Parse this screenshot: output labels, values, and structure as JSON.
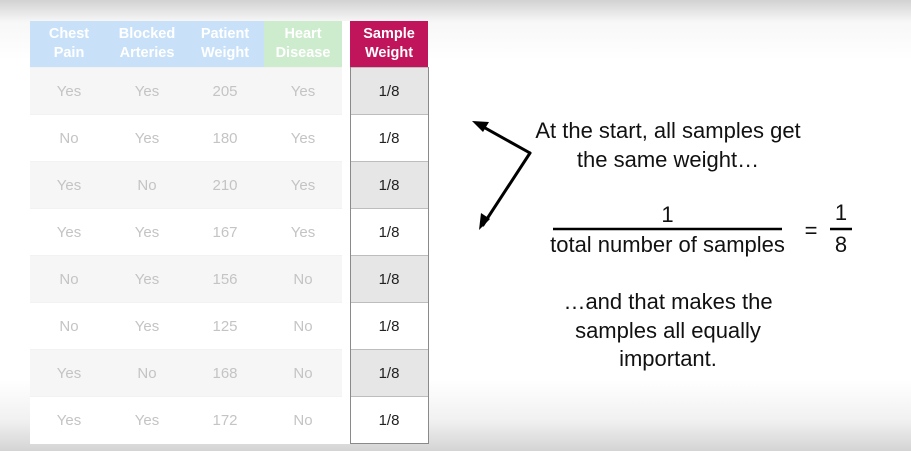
{
  "table": {
    "headers": [
      {
        "label": "Chest Pain",
        "lines": [
          "Chest",
          "Pain"
        ],
        "color": "#c8e1f8"
      },
      {
        "label": "Blocked Arteries",
        "lines": [
          "Blocked",
          "Arteries"
        ],
        "color": "#c8e1f8"
      },
      {
        "label": "Patient Weight",
        "lines": [
          "Patient",
          "Weight"
        ],
        "color": "#c8e1f8"
      },
      {
        "label": "Heart Disease",
        "lines": [
          "Heart",
          "Disease"
        ],
        "color": "#cdeccd"
      },
      {
        "label": "Sample Weight",
        "lines": [
          "Sample",
          "Weight"
        ],
        "color": "#c0155b"
      }
    ],
    "rows": [
      [
        "Yes",
        "Yes",
        "205",
        "Yes",
        "1/8"
      ],
      [
        "No",
        "Yes",
        "180",
        "Yes",
        "1/8"
      ],
      [
        "Yes",
        "No",
        "210",
        "Yes",
        "1/8"
      ],
      [
        "Yes",
        "Yes",
        "167",
        "Yes",
        "1/8"
      ],
      [
        "No",
        "Yes",
        "156",
        "No",
        "1/8"
      ],
      [
        "No",
        "Yes",
        "125",
        "No",
        "1/8"
      ],
      [
        "Yes",
        "No",
        "168",
        "No",
        "1/8"
      ],
      [
        "Yes",
        "Yes",
        "172",
        "No",
        "1/8"
      ]
    ]
  },
  "annotation": {
    "line1": "At the start, all samples get",
    "line2": "the same weight…",
    "fraction_numerator": "1",
    "fraction_denominator": "total number of samples",
    "equals": "=",
    "result_numerator": "1",
    "result_denominator": "8",
    "conclusion_line1": "…and that makes the",
    "conclusion_line2": "samples all equally",
    "conclusion_line3": "important."
  }
}
